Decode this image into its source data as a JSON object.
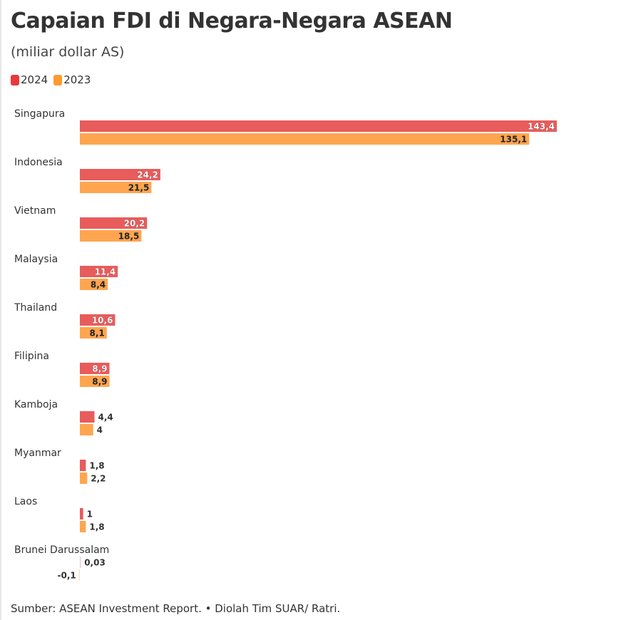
{
  "chart_data": {
    "type": "bar",
    "orientation": "horizontal",
    "title": "Capaian FDI di Negara-Negara ASEAN",
    "subtitle": "(miliar dollar AS)",
    "categories": [
      "Singapura",
      "Indonesia",
      "Vietnam",
      "Malaysia",
      "Thailand",
      "Filipina",
      "Kamboja",
      "Myanmar",
      "Laos",
      "Brunei Darussalam"
    ],
    "series": [
      {
        "name": "2024",
        "color": "#e85c5c",
        "legend_color": "#e83a3a",
        "values": [
          143.4,
          24.2,
          20.2,
          11.4,
          10.6,
          8.9,
          4.4,
          1.8,
          1,
          0.03
        ],
        "labels": [
          "143,4",
          "24,2",
          "20,2",
          "11,4",
          "10,6",
          "8,9",
          "4,4",
          "1,8",
          "1",
          "0,03"
        ]
      },
      {
        "name": "2023",
        "color": "#ffa54f",
        "legend_color": "#ff9a30",
        "values": [
          135.1,
          21.5,
          18.5,
          8.4,
          8.1,
          8.9,
          4,
          2.2,
          1.8,
          -0.1
        ],
        "labels": [
          "135,1",
          "21,5",
          "18,5",
          "8,4",
          "8,1",
          "8,9",
          "4",
          "2,2",
          "1,8",
          "-0,1"
        ]
      }
    ],
    "legend_placement": "top-left",
    "grid": false,
    "source": "Sumber: ASEAN Investment Report. • Diolah Tim SUAR/ Ratri."
  }
}
